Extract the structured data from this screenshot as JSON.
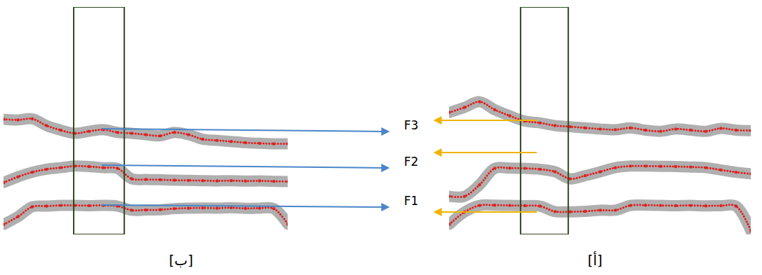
{
  "chart_data": [
    {
      "type": "line",
      "title": "[ب]",
      "xlim": [
        0,
        100
      ],
      "ylim": [
        0,
        100
      ],
      "tick_labels": false,
      "marker": "dot",
      "line_style": "dotted",
      "highlight_x": [
        24.7,
        42.5
      ],
      "x": [
        0,
        5,
        10,
        15,
        20,
        25,
        30,
        35,
        40,
        45,
        50,
        55,
        60,
        65,
        70,
        75,
        80,
        85,
        90,
        95,
        100
      ],
      "series": [
        {
          "name": "F1",
          "color": "#e02020",
          "values": [
            4.6,
            8,
            12.3,
            12.6,
            12.9,
            12.9,
            12.8,
            12.9,
            12.6,
            10.8,
            10.9,
            11.0,
            11.5,
            11.7,
            11.8,
            11.7,
            11.9,
            11.6,
            11.7,
            11.5,
            4.6
          ]
        },
        {
          "name": "F2",
          "color": "#e02020",
          "values": [
            23,
            25.5,
            27.5,
            28.8,
            29.5,
            30.2,
            30.0,
            29.5,
            29.2,
            24.6,
            24.3,
            24.2,
            24.0,
            23.9,
            23.8,
            23.7,
            23.8,
            23.6,
            23.7,
            23.5,
            23.4
          ]
        },
        {
          "name": "F3",
          "color": "#e02020",
          "values": [
            50.8,
            50.5,
            51,
            48,
            46,
            44.6,
            45.5,
            46.2,
            45,
            44.6,
            44,
            43.5,
            45,
            44,
            42,
            41.5,
            41,
            40.5,
            40.2,
            40,
            40
          ]
        }
      ]
    },
    {
      "type": "line",
      "title": "[أ]",
      "xlim": [
        0,
        100
      ],
      "ylim": [
        0,
        100
      ],
      "tick_labels": false,
      "marker": "dot",
      "line_style": "dotted",
      "highlight_x": [
        23.7,
        39.5
      ],
      "x": [
        0,
        5,
        10,
        15,
        20,
        25,
        30,
        35,
        40,
        45,
        50,
        55,
        60,
        65,
        70,
        75,
        80,
        85,
        90,
        95,
        100
      ],
      "series": [
        {
          "name": "F1",
          "color": "#e02020",
          "values": [
            4.6,
            10,
            12.9,
            13,
            12.9,
            12.8,
            12.6,
            10.2,
            10.1,
            10.3,
            10.8,
            10.8,
            12.9,
            13,
            12.9,
            12.8,
            12.9,
            12.7,
            12.8,
            12.6,
            1.5
          ]
        },
        {
          "name": "F2",
          "color": "#e02020",
          "values": [
            16.9,
            16.9,
            22,
            29.2,
            29.3,
            29.2,
            28.8,
            27.7,
            24.6,
            26,
            27.7,
            29.5,
            30.2,
            30.2,
            30.1,
            30.0,
            29.8,
            29.5,
            28.5,
            27.5,
            26.8
          ]
        },
        {
          "name": "F3",
          "color": "#e02020",
          "values": [
            53.8,
            56,
            58.5,
            55,
            52.3,
            50,
            49.2,
            48,
            47.5,
            47,
            46.5,
            46.2,
            47,
            46,
            45.5,
            46.5,
            46,
            45.5,
            46.8,
            46,
            45.8
          ]
        }
      ]
    }
  ]
}
